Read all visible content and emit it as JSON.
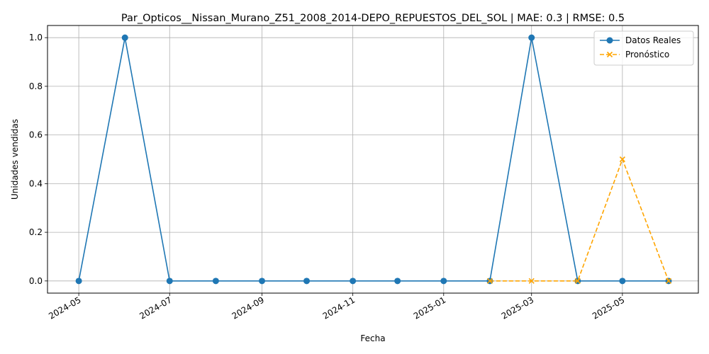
{
  "chart_data": {
    "type": "line",
    "title": "Par_Opticos__Nissan_Murano_Z51_2008_2014-DEPO_REPUESTOS_DEL_SOL | MAE: 0.3 | RMSE: 0.5",
    "xlabel": "Fecha",
    "ylabel": "Unidades vendidas",
    "ylim": [
      -0.05,
      1.05
    ],
    "y_ticks": [
      0.0,
      0.2,
      0.4,
      0.6,
      0.8,
      1.0
    ],
    "y_tick_labels": [
      "0.0",
      "0.2",
      "0.4",
      "0.6",
      "0.8",
      "1.0"
    ],
    "x_range": [
      "2024-04-10",
      "2025-06-21"
    ],
    "x_ticks": [
      "2024-05-01",
      "2024-07-01",
      "2024-09-01",
      "2024-11-01",
      "2025-01-01",
      "2025-03-01",
      "2025-05-01"
    ],
    "x_tick_labels": [
      "2024-05",
      "2024-07",
      "2024-09",
      "2024-11",
      "2025-01",
      "2025-03",
      "2025-05"
    ],
    "grid": true,
    "legend_position": "top-right",
    "series": [
      {
        "name": "Datos Reales",
        "color": "#1f77b4",
        "line_style": "solid",
        "marker": "circle",
        "x": [
          "2024-05-01",
          "2024-06-01",
          "2024-07-01",
          "2024-08-01",
          "2024-09-01",
          "2024-10-01",
          "2024-11-01",
          "2024-12-01",
          "2025-01-01",
          "2025-02-01",
          "2025-03-01",
          "2025-04-01",
          "2025-05-01",
          "2025-06-01"
        ],
        "values": [
          0,
          1,
          0,
          0,
          0,
          0,
          0,
          0,
          0,
          0,
          1,
          0,
          0,
          0
        ]
      },
      {
        "name": "Pronóstico",
        "color": "#ffa500",
        "line_style": "dashed",
        "marker": "x",
        "x": [
          "2025-02-01",
          "2025-03-01",
          "2025-04-01",
          "2025-05-01",
          "2025-06-01"
        ],
        "values": [
          0,
          0,
          0,
          0.5,
          0
        ]
      }
    ]
  }
}
